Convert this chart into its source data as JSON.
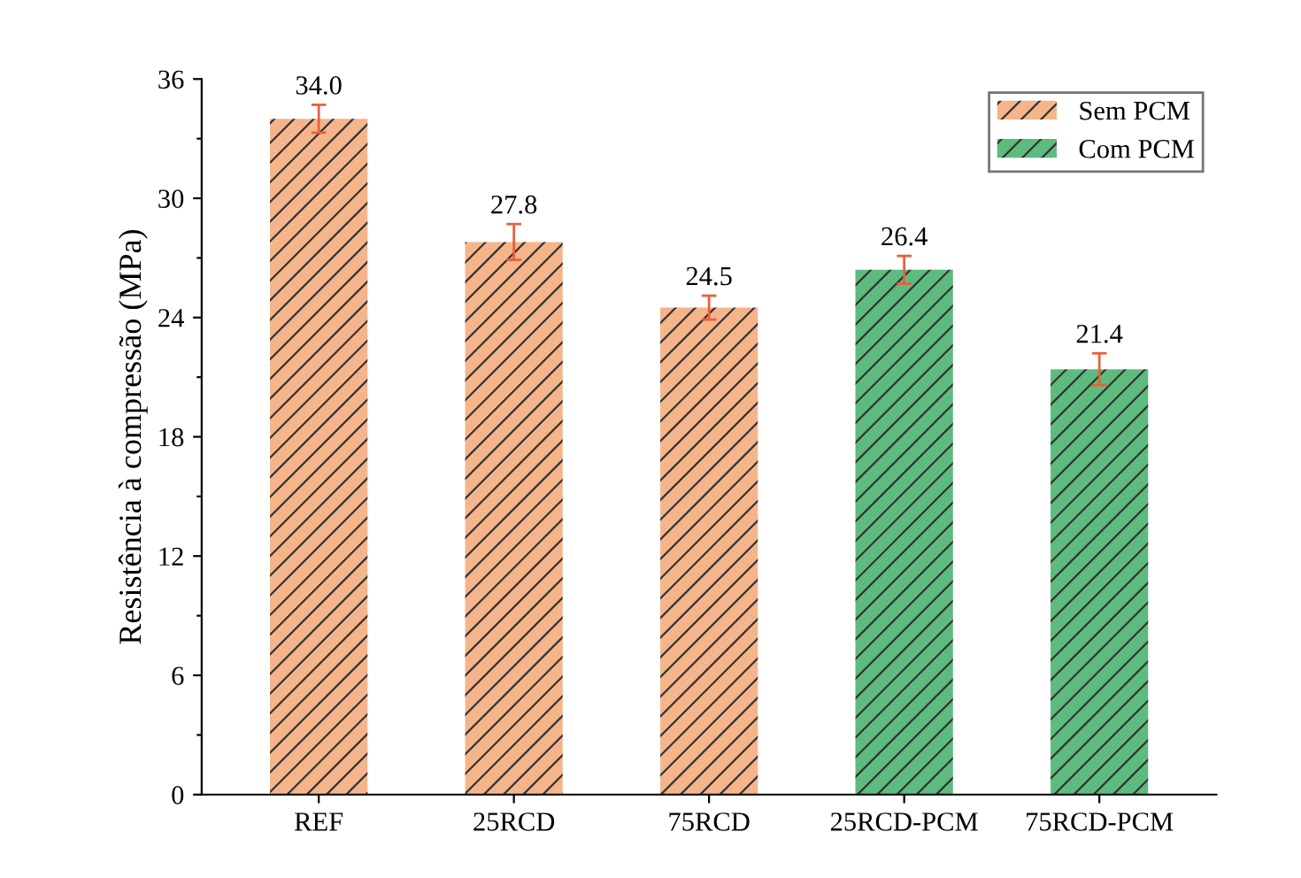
{
  "chart_data": {
    "type": "bar",
    "ylabel": "Resistência à compressão (MPa)",
    "categories": [
      "REF",
      "25RCD",
      "75RCD",
      "25RCD-PCM",
      "75RCD-PCM"
    ],
    "series": [
      {
        "name": "Sem PCM",
        "color": "#f5b58a",
        "values": [
          34.0,
          27.8,
          24.5,
          null,
          null
        ],
        "errors": [
          0.7,
          0.9,
          0.6,
          null,
          null
        ],
        "value_labels": [
          "34.0",
          "27.8",
          "24.5",
          null,
          null
        ]
      },
      {
        "name": "Com PCM",
        "color": "#5dbb7e",
        "values": [
          null,
          null,
          null,
          26.4,
          21.4
        ],
        "errors": [
          null,
          null,
          null,
          0.7,
          0.8
        ],
        "value_labels": [
          null,
          null,
          null,
          "26.4",
          "21.4"
        ]
      }
    ],
    "ylim": [
      0,
      36
    ],
    "yticks": [
      0,
      {
        "value": 3,
        "label": null
      },
      6,
      {
        "value": 9,
        "label": null
      },
      12,
      {
        "value": 15,
        "label": null
      },
      18,
      {
        "value": 21,
        "label": null
      },
      24,
      {
        "value": 27,
        "label": null
      },
      30,
      {
        "value": 33,
        "label": null
      },
      36
    ],
    "legend": "top right",
    "grid": false
  }
}
